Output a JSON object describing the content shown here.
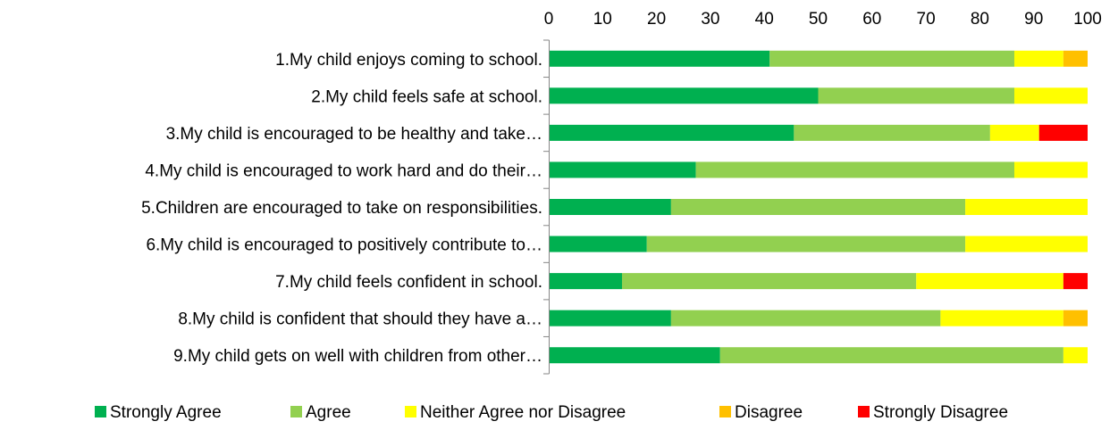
{
  "chart_data": {
    "type": "bar",
    "orientation": "horizontal",
    "stacked": true,
    "x_axis_position": "top",
    "xlim": [
      0,
      100
    ],
    "x_ticks": [
      "0",
      "10",
      "20",
      "30",
      "40",
      "50",
      "60",
      "70",
      "80",
      "90",
      "100"
    ],
    "grid": false,
    "legend_position": "bottom",
    "categories": [
      "1.My child enjoys coming to school.",
      "2.My child feels safe at school.",
      "3.My child is encouraged to be healthy and take…",
      "4.My child is encouraged to work hard and do their…",
      "5.Children are encouraged to take on responsibilities.",
      "6.My child is encouraged to positively contribute to…",
      "7.My child feels confident in school.",
      "8.My child is confident that should they have a…",
      "9.My child gets on well with children from other…"
    ],
    "series": [
      {
        "name": "Strongly Agree",
        "color": "#00b050",
        "values": [
          41,
          50,
          45.5,
          27.3,
          22.7,
          18.2,
          13.6,
          22.7,
          31.8
        ]
      },
      {
        "name": "Agree",
        "color": "#92d050",
        "values": [
          45.4,
          36.4,
          36.4,
          59.1,
          54.6,
          59.1,
          54.6,
          50,
          63.7
        ]
      },
      {
        "name": "Neither Agree nor Disagree",
        "color": "#ffff00",
        "values": [
          9.1,
          13.6,
          9.1,
          13.6,
          22.7,
          22.7,
          27.3,
          22.8,
          4.5
        ]
      },
      {
        "name": "Disagree",
        "color": "#ffc000",
        "values": [
          4.5,
          0,
          0,
          0,
          0,
          0,
          0,
          4.5,
          0
        ]
      },
      {
        "name": "Strongly Disagree",
        "color": "#ff0000",
        "values": [
          0,
          0,
          9,
          0,
          0,
          0,
          4.5,
          0,
          0
        ]
      }
    ]
  }
}
